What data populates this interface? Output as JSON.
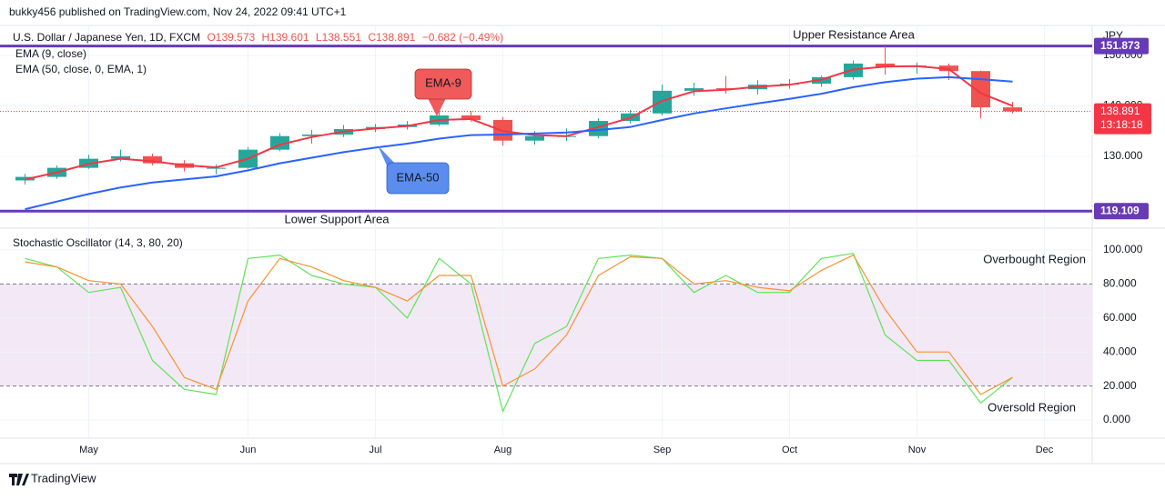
{
  "header": {
    "published": "bukky456 published on TradingView.com, Nov 24, 2022 09:41 UTC+1"
  },
  "footer": {
    "brand": "TradingView"
  },
  "chart_data": [
    {
      "type": "candlestick",
      "title": "U.S. Dollar / Japanese Yen, 1D, FXCM",
      "quote": [
        "O139.573",
        "H139.601",
        "L138.551",
        "C138.891",
        "−0.682 (−0.49%)"
      ],
      "axis_label": "JPY",
      "categories": [
        null,
        null,
        "May",
        null,
        null,
        null,
        null,
        "Jun",
        null,
        null,
        null,
        "Jul",
        null,
        null,
        null,
        "Aug",
        null,
        null,
        null,
        null,
        "Sep",
        null,
        null,
        null,
        "Oct",
        null,
        null,
        null,
        "Nov",
        null,
        null,
        null,
        "Dec",
        null
      ],
      "open": [
        125.2,
        125.9,
        127.7,
        129.5,
        130.0,
        128.6,
        127.7,
        127.7,
        131.3,
        134.0,
        134.3,
        135.4,
        135.8,
        136.3,
        138.1,
        137.2,
        133.1,
        134.0,
        134.0,
        137.0,
        138.5,
        143.0,
        143.5,
        143.3,
        144.2,
        144.4,
        145.7,
        148.4,
        147.8,
        148.0,
        146.9,
        139.7,
        null,
        null
      ],
      "high": [
        126.5,
        128.2,
        130.3,
        131.3,
        130.5,
        129.2,
        128.4,
        131.8,
        134.6,
        135.2,
        136.2,
        136.4,
        137.0,
        139.4,
        139.0,
        137.8,
        135.0,
        135.5,
        137.5,
        139.2,
        144.2,
        144.6,
        145.9,
        145.1,
        145.3,
        146.0,
        149.0,
        151.9,
        148.6,
        148.4,
        147.0,
        140.8,
        null,
        null
      ],
      "low": [
        124.4,
        125.5,
        127.5,
        129.0,
        128.2,
        127.0,
        126.4,
        127.5,
        131.0,
        132.5,
        133.8,
        134.8,
        135.3,
        136.0,
        136.8,
        132.1,
        132.3,
        133.0,
        133.6,
        136.5,
        138.1,
        142.0,
        142.4,
        142.3,
        143.4,
        143.8,
        145.2,
        146.2,
        146.4,
        145.1,
        137.5,
        138.5,
        null,
        null
      ],
      "close": [
        125.9,
        127.7,
        129.5,
        130.0,
        128.6,
        127.7,
        127.7,
        131.3,
        134.0,
        134.3,
        135.4,
        135.8,
        136.3,
        138.1,
        137.2,
        133.1,
        134.0,
        134.0,
        137.0,
        138.5,
        143.0,
        143.5,
        143.3,
        144.2,
        144.4,
        145.7,
        148.4,
        147.8,
        148.0,
        146.9,
        139.7,
        138.9,
        null,
        null
      ],
      "up_color": "#26a69a",
      "down_color": "#ef5350",
      "series": [
        {
          "name": "EMA (9, close)",
          "color": "#f23645",
          "values": [
            125.4,
            126.8,
            128.5,
            129.5,
            129.0,
            128.2,
            127.8,
            129.5,
            132.3,
            133.8,
            134.9,
            135.5,
            136.0,
            137.2,
            137.4,
            135.0,
            134.2,
            134.0,
            135.8,
            137.6,
            141.0,
            142.9,
            143.2,
            143.8,
            144.2,
            145.2,
            147.2,
            147.8,
            147.9,
            147.3,
            142.5,
            140.0,
            null,
            null
          ]
        },
        {
          "name": "EMA (50, close, 0, EMA, 1)",
          "color": "#2962ff",
          "values": [
            119.5,
            121.0,
            122.5,
            123.8,
            124.8,
            125.4,
            126.0,
            127.2,
            128.6,
            129.7,
            130.8,
            131.7,
            132.5,
            133.5,
            134.2,
            134.3,
            134.5,
            134.7,
            135.2,
            135.8,
            137.2,
            138.5,
            139.5,
            140.5,
            141.4,
            142.4,
            143.7,
            144.7,
            145.4,
            145.7,
            145.3,
            144.8,
            null,
            null
          ]
        }
      ],
      "ylim": [
        115.9,
        155.6
      ],
      "yticks": [
        {
          "value": 130,
          "label": "130.000"
        },
        {
          "value": 140,
          "label": "140.000"
        },
        {
          "value": 150,
          "label": "150.000"
        }
      ],
      "levels": [
        {
          "name": "Upper Resistance Area",
          "value": 151.873,
          "label": "151.873",
          "color": "#673ab7"
        },
        {
          "name": "Lower Support Area",
          "value": 119.109,
          "label": "119.109",
          "color": "#673ab7"
        }
      ],
      "last_price": {
        "value": 138.891,
        "countdown": "13:18:18",
        "color": "#f23645"
      },
      "callouts": [
        {
          "text": "EMA-9",
          "color": "#f05a5a"
        },
        {
          "text": "EMA-50",
          "color": "#5b8def"
        }
      ],
      "grid": true
    },
    {
      "type": "line",
      "title": "Stochastic Oscillator (14, 3, 80, 20)",
      "series": [
        {
          "color": "#5fe35a",
          "values": [
            95,
            90,
            75,
            78,
            35,
            18,
            15,
            95,
            97,
            85,
            80,
            78,
            60,
            95,
            80,
            5,
            45,
            55,
            95,
            97,
            95,
            75,
            85,
            75,
            75,
            95,
            98,
            50,
            35,
            35,
            10,
            25,
            null,
            null
          ]
        },
        {
          "color": "#f7932f",
          "values": [
            93,
            90,
            82,
            80,
            55,
            25,
            18,
            70,
            95,
            90,
            82,
            78,
            70,
            85,
            85,
            20,
            30,
            50,
            85,
            96,
            95,
            80,
            82,
            78,
            76,
            88,
            97,
            65,
            40,
            40,
            15,
            25,
            null,
            null
          ]
        }
      ],
      "ylim": [
        -10.7,
        112.3
      ],
      "yticks": [
        {
          "value": 0,
          "label": "0.000"
        },
        {
          "value": 20,
          "label": "20.000"
        },
        {
          "value": 40,
          "label": "40.000"
        },
        {
          "value": 60,
          "label": "60.000"
        },
        {
          "value": 80,
          "label": "80.000"
        },
        {
          "value": 100,
          "label": "100.000"
        }
      ],
      "bands": [
        20,
        80
      ],
      "band_color": "#f3e8f6",
      "annotations": [
        "Overbought Region",
        "Oversold Region"
      ],
      "grid": true
    }
  ]
}
